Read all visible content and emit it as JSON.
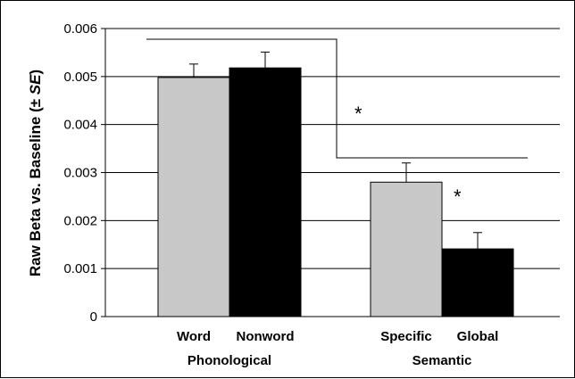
{
  "chart_data": {
    "type": "bar",
    "ylabel_main": "Raw Beta vs. Baseline (± ",
    "ylabel_se": "SE",
    "ylabel_close": ")",
    "ylim": [
      0,
      0.006
    ],
    "yticks": [
      "0",
      "0.001",
      "0.002",
      "0.003",
      "0.004",
      "0.005",
      "0.006"
    ],
    "ytick_values": [
      0,
      0.001,
      0.002,
      0.003,
      0.004,
      0.005,
      0.006
    ],
    "grid": true,
    "groups": [
      {
        "label": "Phonological",
        "bars": [
          {
            "label": "Word",
            "value": 0.00498,
            "error": 0.00028,
            "color": "#c8c8c8"
          },
          {
            "label": "Nonword",
            "value": 0.00518,
            "error": 0.00033,
            "color": "#000000"
          }
        ]
      },
      {
        "label": "Semantic",
        "bars": [
          {
            "label": "Specific",
            "value": 0.0028,
            "error": 0.0004,
            "color": "#c8c8c8"
          },
          {
            "label": "Global",
            "value": 0.00141,
            "error": 0.00034,
            "color": "#000000"
          }
        ]
      }
    ],
    "annotations": [
      "*",
      "*"
    ]
  }
}
